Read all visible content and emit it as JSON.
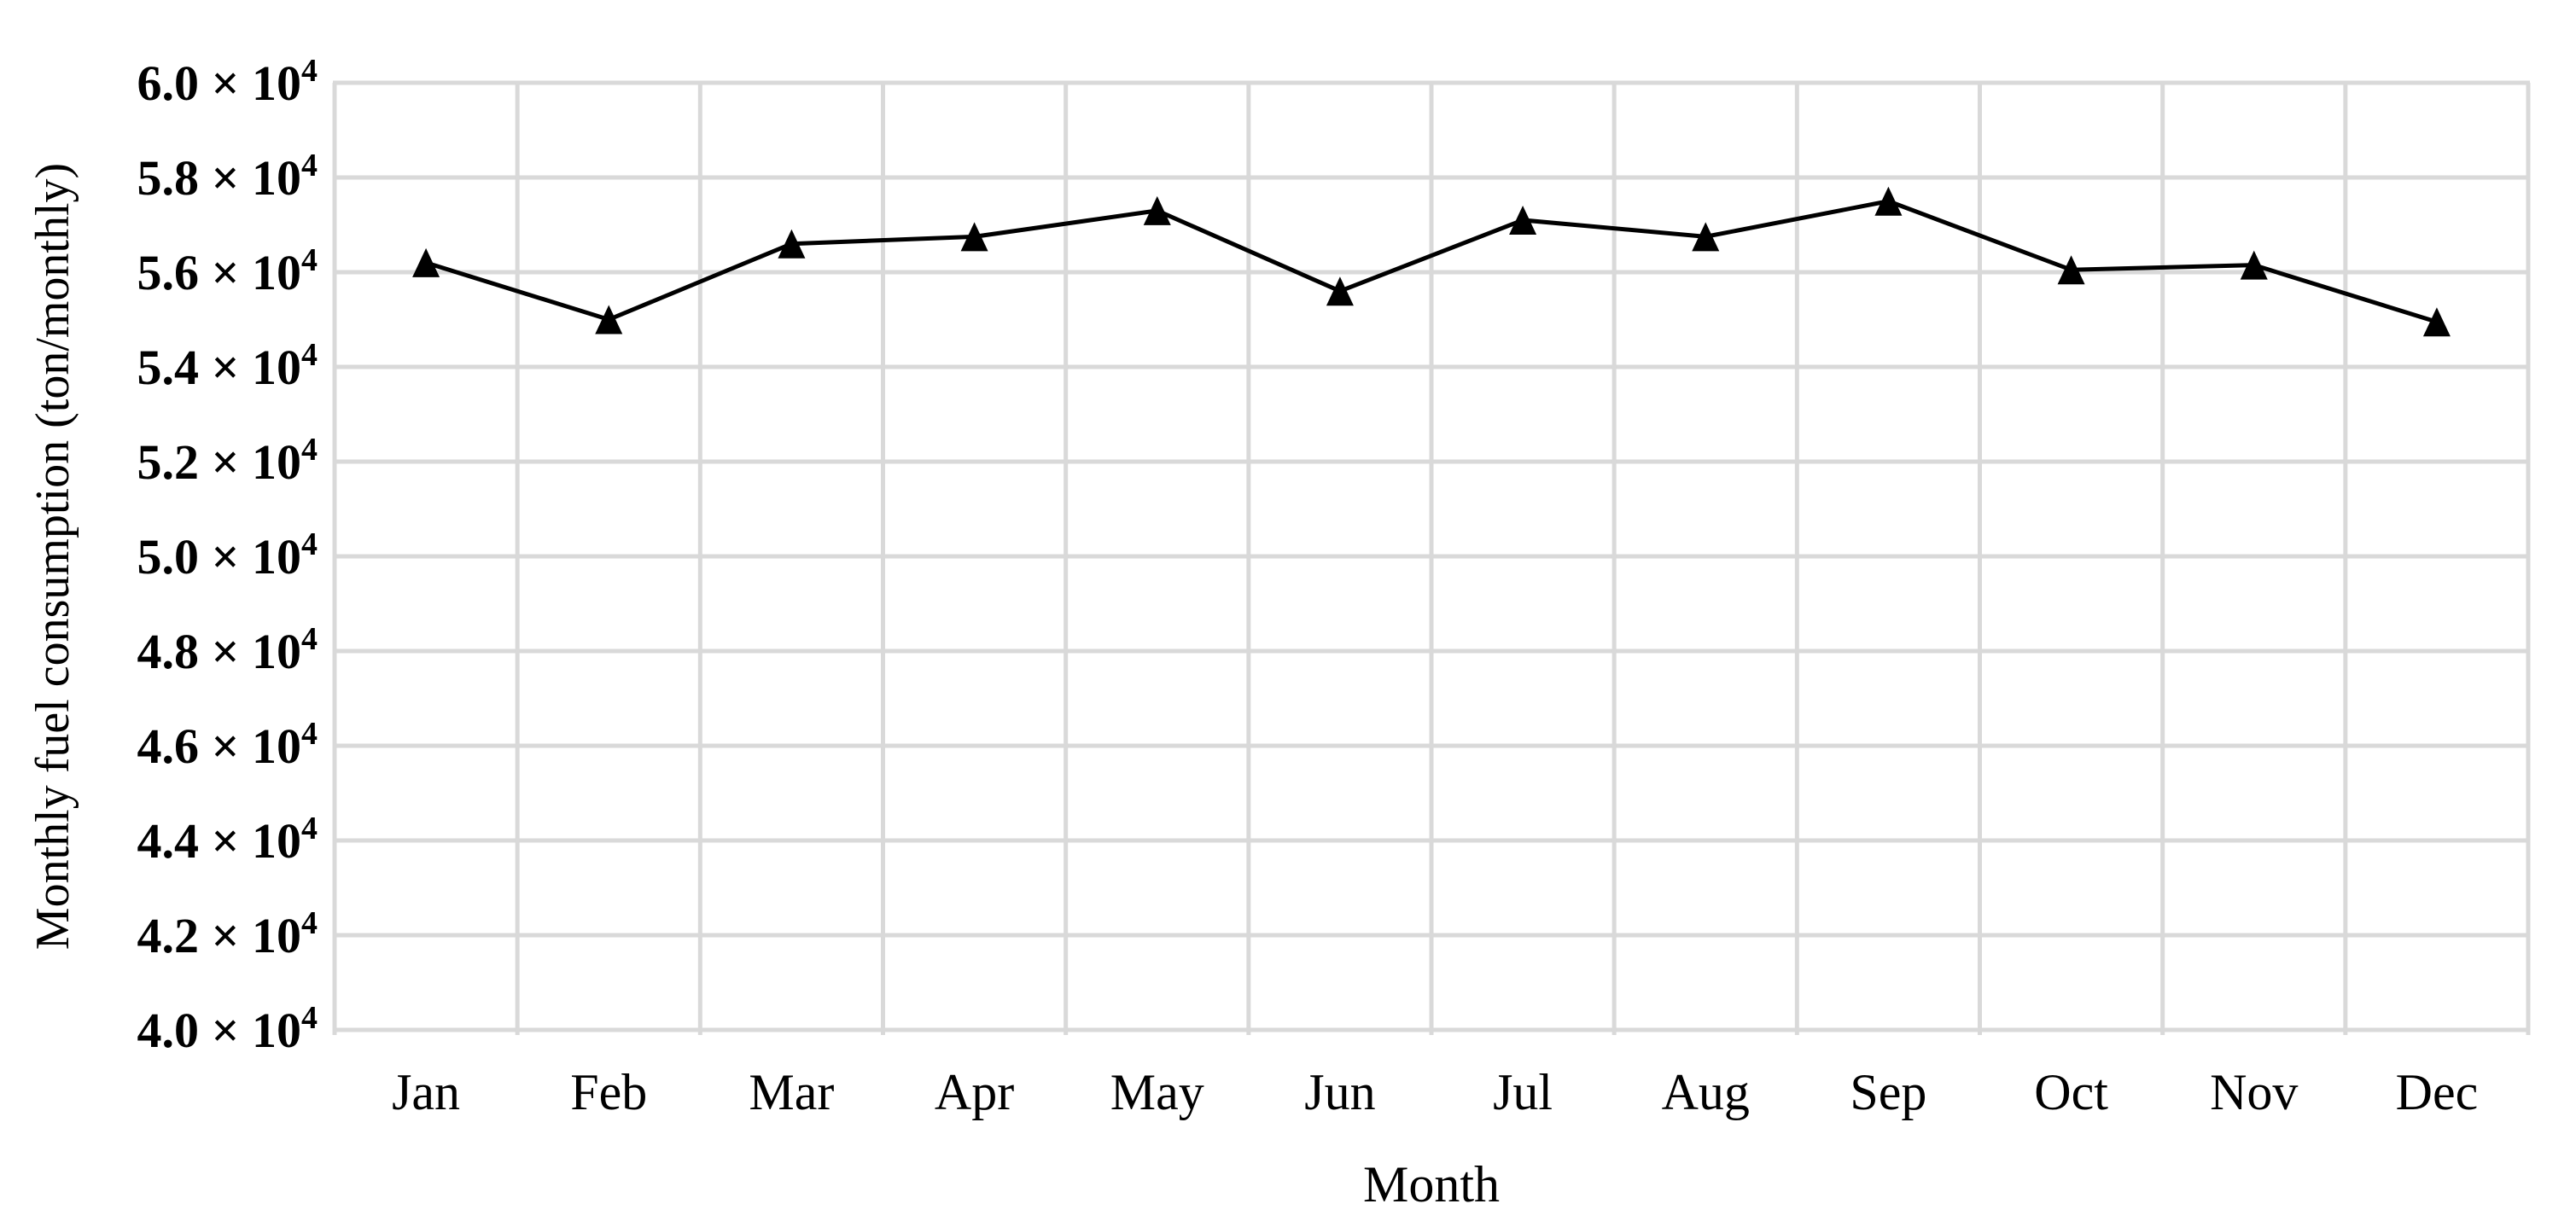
{
  "page": {
    "background": "#ffffff"
  },
  "chart_data": {
    "type": "line",
    "title": "",
    "xlabel": "Month",
    "ylabel": "Monthly fuel consumption (ton/monthly)",
    "categories": [
      "Jan",
      "Feb",
      "Mar",
      "Apr",
      "May",
      "Jun",
      "Jul",
      "Aug",
      "Sep",
      "Oct",
      "Nov",
      "Dec"
    ],
    "series": [
      {
        "name": "Monthly fuel consumption",
        "marker": "filled-triangle-up",
        "color": "#000000",
        "values": [
          56200,
          55000,
          56600,
          56750,
          57300,
          55600,
          57100,
          56750,
          57500,
          56050,
          56150,
          54950
        ]
      }
    ],
    "ylim": [
      40000,
      60000
    ],
    "ytick_step": 2000,
    "ytick_format": {
      "mantissas": [
        "6.0",
        "5.8",
        "5.6",
        "5.4",
        "5.2",
        "5.0",
        "4.8",
        "4.6",
        "4.4",
        "4.2",
        "4.0"
      ],
      "multiplier_text": "× 10",
      "exponent": "4"
    },
    "grid": {
      "show_horizontal": true,
      "show_vertical": true,
      "color": "#d9d9d9"
    },
    "legend_position": "none",
    "colors": {
      "line": "#000000",
      "marker": "#000000",
      "text": "#000000",
      "gridline": "#d9d9d9",
      "background": "#ffffff"
    }
  }
}
